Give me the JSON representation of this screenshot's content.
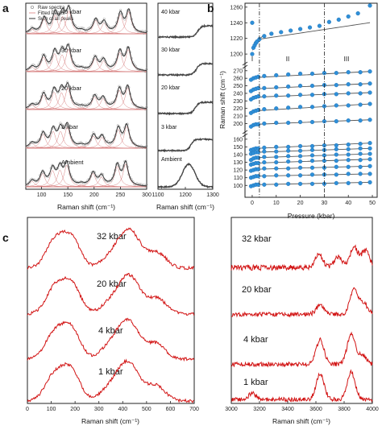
{
  "panel_labels": {
    "a": "a",
    "b": "b",
    "c": "c"
  },
  "colors": {
    "raw": "#9a9a9a",
    "fitted_peaks": "#d88080",
    "sum": "#333333",
    "red_spectrum": "#d21414",
    "blue_point": "#2f8fd8",
    "fit_line": "#555555"
  },
  "chart_data": [
    {
      "id": "a-left",
      "type": "line",
      "xlabel": "Raman shift (cm⁻¹)",
      "xlim": [
        70,
        300
      ],
      "xticks": [
        "100",
        "150",
        "200",
        "250",
        "300"
      ],
      "legend": [
        "Raw spectra",
        "Fitted Peaks",
        "Sum of all peaks"
      ],
      "legend_position": "top-left",
      "series": [
        {
          "name": "40 kbar",
          "peaks": [
            [
              82,
              0.18
            ],
            [
              105,
              0.62
            ],
            [
              126,
              0.78
            ],
            [
              140,
              0.72
            ],
            [
              152,
              0.95
            ],
            [
              176,
              0.08
            ],
            [
              203,
              0.55
            ],
            [
              219,
              0.45
            ],
            [
              250,
              0.8
            ],
            [
              266,
              0.92
            ]
          ]
        },
        {
          "name": "30 kbar",
          "peaks": [
            [
              82,
              0.18
            ],
            [
              104,
              0.6
            ],
            [
              125,
              0.75
            ],
            [
              139,
              0.7
            ],
            [
              151,
              0.93
            ],
            [
              176,
              0.08
            ],
            [
              202,
              0.55
            ],
            [
              218,
              0.45
            ],
            [
              249,
              0.8
            ],
            [
              265,
              0.92
            ]
          ]
        },
        {
          "name": "20 kbar",
          "peaks": [
            [
              82,
              0.18
            ],
            [
              104,
              0.6
            ],
            [
              124,
              0.72
            ],
            [
              138,
              0.7
            ],
            [
              150,
              0.9
            ],
            [
              176,
              0.08
            ],
            [
              201,
              0.52
            ],
            [
              217,
              0.45
            ],
            [
              248,
              0.8
            ],
            [
              264,
              0.9
            ]
          ]
        },
        {
          "name": "3 kbar",
          "peaks": [
            [
              82,
              0.2
            ],
            [
              103,
              0.58
            ],
            [
              122,
              0.7
            ],
            [
              136,
              0.7
            ],
            [
              149,
              0.88
            ],
            [
              176,
              0.08
            ],
            [
              199,
              0.5
            ],
            [
              215,
              0.45
            ],
            [
              246,
              0.78
            ],
            [
              262,
              0.9
            ]
          ]
        },
        {
          "name": "Ambient",
          "peaks": [
            [
              82,
              0.22
            ],
            [
              102,
              0.55
            ],
            [
              121,
              0.68
            ],
            [
              135,
              0.7
            ],
            [
              148,
              0.9
            ],
            [
              176,
              0.08
            ],
            [
              198,
              0.55
            ],
            [
              214,
              0.4
            ],
            [
              244,
              0.85
            ],
            [
              260,
              0.95
            ]
          ]
        }
      ]
    },
    {
      "id": "a-right",
      "type": "line",
      "xlabel": "Raman shift (cm⁻¹)",
      "xlim": [
        1100,
        1300
      ],
      "xticks": [
        "1100",
        "1200",
        "1300"
      ],
      "series": [
        {
          "name": "40 kbar",
          "step_center": 1245,
          "width": 26
        },
        {
          "name": "30 kbar",
          "step_center": 1240,
          "width": 26
        },
        {
          "name": "20 kbar",
          "step_center": 1236,
          "width": 26
        },
        {
          "name": "3 kbar",
          "step_center": 1220,
          "width": 24
        },
        {
          "name": "Ambient",
          "peak_center": 1212,
          "width": 46
        }
      ]
    },
    {
      "id": "b",
      "type": "scatter",
      "xlabel": "Pressure (kbar)",
      "ylabel": "Raman shift (cm⁻¹)",
      "xlim": [
        -3,
        52
      ],
      "xticks": [
        "0",
        "10",
        "20",
        "30",
        "40",
        "50"
      ],
      "regions": [
        "I",
        "II",
        "III"
      ],
      "boundaries": [
        3,
        30
      ],
      "grid": false,
      "segments": [
        {
          "ylim": [
            1196,
            1265
          ],
          "yticks": [
            "1200",
            "1220",
            "1240",
            "1260"
          ],
          "series": [
            {
              "x": [
                0,
                0,
                0.5,
                1,
                1.5,
                2,
                3,
                5,
                8,
                12,
                16,
                20,
                24,
                28,
                32,
                36,
                40,
                44,
                49
              ],
              "y": [
                1240,
                1200,
                1208,
                1211,
                1214,
                1216,
                1219,
                1223,
                1226,
                1228,
                1230,
                1232,
                1234,
                1236,
                1241,
                1244,
                1248,
                1252,
                1262
              ]
            }
          ]
        },
        {
          "ylim": [
            193,
            273
          ],
          "yticks": [
            "200",
            "210",
            "220",
            "230",
            "240",
            "250",
            "260",
            "270"
          ],
          "series": [
            {
              "x": [
                -0.5,
                0.5,
                1.5,
                2.5,
                5,
                10,
                15,
                20,
                25,
                30,
                35,
                40,
                45,
                49
              ],
              "y": [
                258,
                260,
                261,
                262,
                263,
                264,
                265,
                266,
                266,
                267,
                267,
                268,
                268,
                269
              ]
            },
            {
              "x": [
                -0.5,
                0.5,
                1.5,
                2.5,
                5,
                10,
                15,
                20,
                25,
                30,
                35,
                40,
                45,
                49
              ],
              "y": [
                243,
                245,
                246,
                247,
                247,
                248,
                249,
                250,
                250,
                251,
                251,
                252,
                252,
                253
              ]
            },
            {
              "x": [
                -0.5,
                0.5,
                1.5,
                2.5,
                5,
                10,
                15,
                20,
                25,
                30,
                35,
                40,
                45,
                49
              ],
              "y": [
                232,
                234,
                235,
                236,
                236,
                237,
                237,
                238,
                238,
                239,
                239,
                240,
                240,
                241
              ]
            },
            {
              "x": [
                -0.5,
                0.5,
                1.5,
                2.5,
                5,
                10,
                15,
                20,
                25,
                30,
                35,
                40,
                45,
                49
              ],
              "y": [
                214,
                216,
                217,
                218,
                219,
                220,
                221,
                222,
                222,
                223,
                224,
                224,
                225,
                226
              ]
            },
            {
              "x": [
                -0.5,
                0.5,
                1.5,
                2.5,
                5,
                10,
                15,
                20,
                25,
                30,
                35,
                40,
                45,
                49
              ],
              "y": [
                196,
                198,
                199,
                199,
                200,
                201,
                201,
                202,
                202,
                203,
                203,
                204,
                204,
                205
              ]
            }
          ]
        },
        {
          "ylim": [
            94,
            163
          ],
          "yticks": [
            "100",
            "110",
            "120",
            "130",
            "140",
            "150",
            "160"
          ],
          "series": [
            {
              "x": [
                -0.5,
                0.5,
                1.5,
                2.5,
                5,
                10,
                15,
                20,
                25,
                30,
                35,
                40,
                45,
                49
              ],
              "y": [
                146,
                147,
                148,
                148,
                149,
                150,
                150,
                151,
                151,
                152,
                152,
                153,
                154,
                155
              ]
            },
            {
              "x": [
                -0.5,
                0.5,
                1.5,
                2.5,
                5,
                10,
                15,
                20,
                25,
                30,
                35,
                40,
                45,
                49
              ],
              "y": [
                141,
                142,
                143,
                143,
                144,
                144,
                145,
                145,
                146,
                146,
                147,
                147,
                148,
                148
              ]
            },
            {
              "x": [
                -0.5,
                0.5,
                1.5,
                2.5,
                5,
                10,
                15,
                20,
                25,
                30,
                35,
                40,
                45,
                49
              ],
              "y": [
                133,
                135,
                136,
                136,
                137,
                137,
                138,
                138,
                139,
                139,
                140,
                140,
                141,
                141
              ]
            },
            {
              "x": [
                -0.5,
                0.5,
                1.5,
                2.5,
                5,
                10,
                15,
                20,
                25,
                30,
                35,
                40,
                45,
                49
              ],
              "y": [
                127,
                128,
                129,
                129,
                130,
                130,
                131,
                131,
                132,
                132,
                132,
                133,
                133,
                134
              ]
            },
            {
              "x": [
                -0.5,
                0.5,
                1.5,
                2.5,
                5,
                10,
                15,
                20,
                25,
                30,
                35,
                40,
                45,
                49
              ],
              "y": [
                119,
                120,
                121,
                121,
                122,
                122,
                122,
                123,
                123,
                123,
                124,
                124,
                124,
                125
              ]
            },
            {
              "x": [
                -0.5,
                0.5,
                1.5,
                2.5,
                5,
                10,
                15,
                20,
                25,
                30,
                35,
                40,
                45,
                49
              ],
              "y": [
                110,
                111,
                112,
                112,
                112,
                113,
                113,
                113,
                114,
                114,
                114,
                115,
                115,
                115
              ]
            },
            {
              "x": [
                -0.5,
                0.5,
                1.5,
                2.5,
                5,
                10,
                15,
                20,
                25,
                30,
                35,
                40,
                45,
                49
              ],
              "y": [
                99,
                100,
                101,
                101,
                101,
                101,
                102,
                102,
                102,
                102,
                103,
                103,
                103,
                104
              ]
            }
          ]
        }
      ]
    },
    {
      "id": "c-left",
      "type": "line",
      "xlabel": "Raman shift (cm⁻¹)",
      "xlim": [
        0,
        700
      ],
      "xticks": [
        "0",
        "100",
        "200",
        "300",
        "400",
        "500",
        "600",
        "700"
      ],
      "series": [
        {
          "name": "32 kbar",
          "peaks": [
            [
              115,
              0.78
            ],
            [
              185,
              0.85
            ],
            [
              345,
              0.3
            ],
            [
              410,
              0.78
            ],
            [
              455,
              0.55
            ],
            [
              545,
              0.45
            ]
          ],
          "baseline": 0.05,
          "noise": 0.045
        },
        {
          "name": "20 kbar",
          "peaks": [
            [
              115,
              0.75
            ],
            [
              185,
              0.85
            ],
            [
              345,
              0.3
            ],
            [
              410,
              0.78
            ],
            [
              455,
              0.55
            ],
            [
              545,
              0.45
            ]
          ],
          "baseline": 0.05,
          "noise": 0.045
        },
        {
          "name": "4 kbar",
          "peaks": [
            [
              112,
              0.72
            ],
            [
              182,
              0.9
            ],
            [
              340,
              0.32
            ],
            [
              405,
              0.8
            ],
            [
              450,
              0.55
            ],
            [
              540,
              0.45
            ]
          ],
          "baseline": 0.05,
          "noise": 0.045
        },
        {
          "name": "1 kbar",
          "peaks": [
            [
              112,
              0.72
            ],
            [
              182,
              0.9
            ],
            [
              340,
              0.32
            ],
            [
              405,
              0.8
            ],
            [
              450,
              0.55
            ],
            [
              540,
              0.45
            ]
          ],
          "baseline": 0.05,
          "noise": 0.045
        }
      ]
    },
    {
      "id": "c-right",
      "type": "line",
      "xlabel": "Raman shift (cm⁻¹)",
      "xlim": [
        3000,
        4000
      ],
      "xticks": [
        "3000",
        "3200",
        "3400",
        "3600",
        "3800",
        "4000"
      ],
      "series": [
        {
          "name": "32 kbar",
          "peaks": [
            [
              3620,
              0.45
            ],
            [
              3760,
              0.35
            ],
            [
              3870,
              0.65
            ],
            [
              3950,
              0.55
            ]
          ],
          "baseline": 0.15,
          "noise": 0.09
        },
        {
          "name": "20 kbar",
          "peaks": [
            [
              3630,
              0.3
            ],
            [
              3870,
              0.85
            ],
            [
              3940,
              0.35
            ]
          ],
          "baseline": 0.12,
          "noise": 0.07
        },
        {
          "name": "4 kbar",
          "peaks": [
            [
              3630,
              0.8
            ],
            [
              3850,
              1.0
            ],
            [
              3930,
              0.3
            ]
          ],
          "baseline": 0.12,
          "noise": 0.07
        },
        {
          "name": "1 kbar",
          "peaks": [
            [
              3150,
              0.2
            ],
            [
              3630,
              0.85
            ],
            [
              3850,
              0.9
            ]
          ],
          "baseline": 0.1,
          "noise": 0.07
        }
      ]
    }
  ]
}
